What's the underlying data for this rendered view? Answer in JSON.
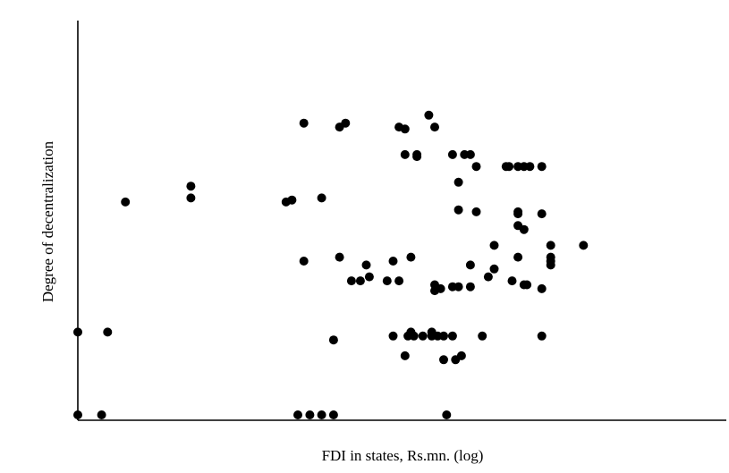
{
  "chart_data": {
    "type": "scatter",
    "title": "",
    "xlabel": "FDI in states, Rs.mn. (log)",
    "ylabel": "Degree of decentralization",
    "x_ticks": [],
    "y_ticks": [],
    "xlim": [
      0,
      10
    ],
    "ylim": [
      0,
      10
    ],
    "grid": false,
    "legend": "none",
    "marker_color": "#000000",
    "series": [
      {
        "points": [
          [
            0.0,
            0.0
          ],
          [
            0.4,
            0.0
          ],
          [
            3.7,
            0.0
          ],
          [
            3.9,
            0.0
          ],
          [
            4.1,
            0.0
          ],
          [
            4.3,
            0.0
          ],
          [
            6.2,
            0.0
          ],
          [
            0.0,
            2.1
          ],
          [
            0.5,
            2.1
          ],
          [
            0.8,
            5.4
          ],
          [
            1.9,
            5.5
          ],
          [
            1.9,
            5.8
          ],
          [
            3.5,
            5.4
          ],
          [
            3.6,
            5.45
          ],
          [
            4.1,
            5.5
          ],
          [
            3.8,
            7.4
          ],
          [
            4.4,
            7.3
          ],
          [
            4.5,
            7.4
          ],
          [
            5.4,
            7.3
          ],
          [
            5.5,
            7.25
          ],
          [
            5.9,
            7.6
          ],
          [
            6.0,
            7.3
          ],
          [
            5.5,
            6.6
          ],
          [
            5.7,
            6.6
          ],
          [
            5.7,
            6.55
          ],
          [
            6.3,
            6.6
          ],
          [
            6.5,
            6.6
          ],
          [
            6.6,
            6.6
          ],
          [
            6.7,
            6.3
          ],
          [
            6.4,
            5.9
          ],
          [
            7.2,
            6.3
          ],
          [
            7.25,
            6.3
          ],
          [
            7.4,
            6.3
          ],
          [
            7.5,
            6.3
          ],
          [
            7.6,
            6.3
          ],
          [
            7.8,
            6.3
          ],
          [
            6.4,
            5.2
          ],
          [
            6.7,
            5.15
          ],
          [
            7.4,
            5.15
          ],
          [
            7.4,
            5.1
          ],
          [
            7.8,
            5.1
          ],
          [
            7.4,
            4.8
          ],
          [
            7.5,
            4.7
          ],
          [
            7.0,
            4.3
          ],
          [
            7.95,
            4.3
          ],
          [
            8.5,
            4.3
          ],
          [
            7.95,
            4.0
          ],
          [
            7.95,
            3.9
          ],
          [
            7.95,
            3.8
          ],
          [
            3.8,
            3.9
          ],
          [
            4.4,
            4.0
          ],
          [
            5.3,
            3.9
          ],
          [
            5.6,
            4.0
          ],
          [
            4.85,
            3.8
          ],
          [
            4.6,
            3.4
          ],
          [
            4.75,
            3.4
          ],
          [
            4.9,
            3.5
          ],
          [
            5.2,
            3.4
          ],
          [
            5.4,
            3.4
          ],
          [
            6.0,
            3.3
          ],
          [
            6.0,
            3.15
          ],
          [
            6.1,
            3.2
          ],
          [
            6.3,
            3.25
          ],
          [
            6.4,
            3.25
          ],
          [
            6.6,
            3.25
          ],
          [
            6.6,
            3.8
          ],
          [
            6.9,
            3.5
          ],
          [
            7.0,
            3.7
          ],
          [
            7.3,
            3.4
          ],
          [
            7.5,
            3.3
          ],
          [
            7.55,
            3.3
          ],
          [
            7.8,
            3.2
          ],
          [
            7.4,
            4.0
          ],
          [
            4.3,
            1.9
          ],
          [
            5.3,
            2.0
          ],
          [
            5.55,
            2.0
          ],
          [
            5.6,
            2.1
          ],
          [
            5.65,
            2.0
          ],
          [
            5.8,
            2.0
          ],
          [
            5.95,
            2.0
          ],
          [
            5.95,
            2.1
          ],
          [
            6.05,
            2.0
          ],
          [
            6.15,
            2.0
          ],
          [
            6.3,
            2.0
          ],
          [
            6.8,
            2.0
          ],
          [
            7.8,
            2.0
          ],
          [
            5.5,
            1.5
          ],
          [
            6.15,
            1.4
          ],
          [
            6.35,
            1.4
          ],
          [
            6.45,
            1.5
          ]
        ]
      }
    ]
  }
}
